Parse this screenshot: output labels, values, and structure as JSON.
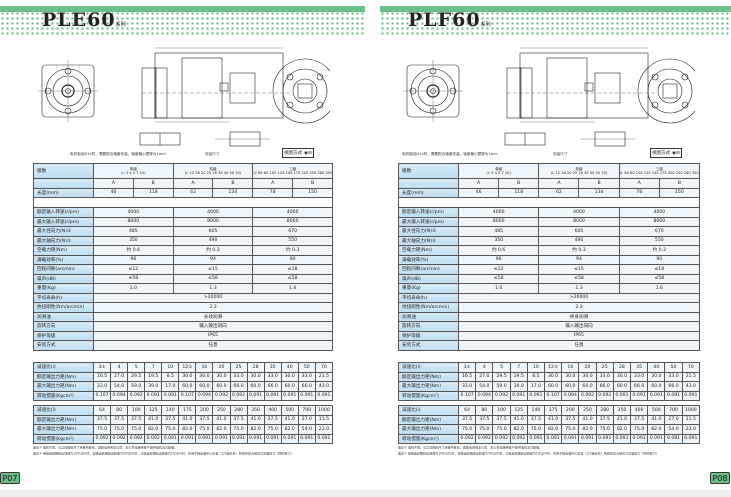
{
  "pages": [
    {
      "id": "pL",
      "title": "PLE60",
      "series": "系列",
      "view_label": "视图方式",
      "page_no": "P07",
      "lube": "长效润滑",
      "drawing_notes": [
        "电机轴径Ø14时，需要配合轴套安装，轴套最小壁厚为1mm",
        "安装尺寸"
      ]
    },
    {
      "id": "pR",
      "title": "PLF60",
      "series": "系列",
      "view_label": "视图方式",
      "page_no": "P08",
      "lube": "终身润滑",
      "drawing_notes": [
        "电机轴径Ø14时，需要配合轴套安装，轴套最小壁厚为1mm",
        "安装尺寸"
      ]
    }
  ],
  "spec": {
    "stage_label": "级数",
    "stages": [
      {
        "name": "单级",
        "ratios": "(i: 3 4 5 7 10)"
      },
      {
        "name": "双级",
        "ratios": "(i: 12 16 20 25 28 35 40 50 70)"
      },
      {
        "name": "三级",
        "ratios": "(i: 64 80 100 125 140 175 200 250 280 350 400 500 700 1000)"
      }
    ],
    "ab": [
      "A",
      "B",
      "A",
      "B",
      "A",
      "B"
    ],
    "length_label": "长度(mm)",
    "length": [
      "46",
      "118",
      "62",
      "134",
      "78",
      "150"
    ],
    "rows": [
      {
        "label": "额定输入转速(r/pm)",
        "values": [
          "4000",
          "4000",
          "4000"
        ]
      },
      {
        "label": "最大输入转速(r/pm)",
        "values": [
          "8000",
          "8000",
          "8000"
        ]
      },
      {
        "label": "最大径向力(N)②",
        "values": [
          "485",
          "605",
          "670"
        ]
      },
      {
        "label": "最大轴向力(N)②",
        "values": [
          "350",
          "490",
          "550"
        ]
      },
      {
        "label": "空载力矩(Nm)",
        "values": [
          "约 0.6",
          "约 0.3",
          "约 0.3"
        ]
      },
      {
        "label": "满载效率(%)",
        "values": [
          "96",
          "94",
          "90"
        ]
      },
      {
        "label": "回程间隙(arcmin)",
        "values": [
          "≤12",
          "≤15",
          "≤18"
        ]
      },
      {
        "label": "噪声(dB)",
        "values": [
          "≤58",
          "≤58",
          "≤58"
        ]
      },
      {
        "label": "重量(Kg)",
        "values": [
          "1.0",
          "1.3",
          "1.6"
        ]
      },
      {
        "label": "平均寿命(h)",
        "values": [
          ">20000"
        ]
      },
      {
        "label": "抗扭刚性(Nm/arcmin)",
        "values": [
          "2.3"
        ]
      },
      {
        "label": "润滑油",
        "values": [
          "@lube"
        ]
      },
      {
        "label": "旋转方向",
        "values": [
          "输入输出同向"
        ]
      },
      {
        "label": "保护等级",
        "values": [
          "IP65"
        ]
      },
      {
        "label": "安装方式",
        "values": [
          "任意"
        ]
      }
    ]
  },
  "ratio_tables": [
    {
      "rows": [
        {
          "label": "减速比(i)",
          "values": [
            "3①",
            "4",
            "5",
            "7",
            "10",
            "12①",
            "16",
            "20",
            "25",
            "28",
            "35",
            "40",
            "50",
            "70"
          ]
        },
        {
          "label": "额定输出力矩(Nm)",
          "values": [
            "16.5",
            "27.0",
            "29.5",
            "19.5",
            "8.5",
            "30.0",
            "30.0",
            "30.0",
            "33.0",
            "30.0",
            "33.0",
            "30.0",
            "33.0",
            "21.5"
          ]
        },
        {
          "label": "最大输出力矩(Nm)",
          "values": [
            "33.0",
            "54.0",
            "59.0",
            "39.0",
            "17.0",
            "60.0",
            "60.0",
            "60.0",
            "66.0",
            "60.0",
            "66.0",
            "60.0",
            "66.0",
            "43.0"
          ]
        },
        {
          "label": "转动惯量(Kgcm²)",
          "values": [
            "0.107",
            "0.094",
            "0.092",
            "0.091",
            "0.091",
            "0.107",
            "0.094",
            "0.092",
            "0.092",
            "0.091",
            "0.091",
            "0.091",
            "0.091",
            "0.091"
          ]
        }
      ]
    },
    {
      "rows": [
        {
          "label": "减速比(i)",
          "values": [
            "64",
            "80",
            "100",
            "125",
            "140",
            "175",
            "200",
            "250",
            "280",
            "350",
            "400",
            "500",
            "700",
            "1000"
          ]
        },
        {
          "label": "额定输出力矩(Nm)",
          "values": [
            "37.5",
            "37.5",
            "37.5",
            "41.0",
            "37.5",
            "41.0",
            "37.5",
            "41.0",
            "37.5",
            "41.0",
            "37.5",
            "41.0",
            "27.0",
            "11.5"
          ]
        },
        {
          "label": "最大输出力矩(Nm)",
          "values": [
            "75.0",
            "75.0",
            "75.0",
            "82.0",
            "75.0",
            "82.0",
            "75.0",
            "82.0",
            "75.0",
            "82.0",
            "75.0",
            "82.0",
            "54.0",
            "23.0"
          ]
        },
        {
          "label": "转动惯量(Kgcm²)",
          "values": [
            "0.092",
            "0.092",
            "0.092",
            "0.092",
            "0.091",
            "0.091",
            "0.091",
            "0.091",
            "0.091",
            "0.091",
            "0.091",
            "0.091",
            "0.091",
            "0.091"
          ]
        }
      ]
    }
  ],
  "notes": [
    "备注①  电机不同，与之匹配的尺寸将有所变化，适配请咨询本公司，本公司也接受客户提供电机法兰配做。",
    "备注②  单级齿轮箱输出转速为100r/pm时，双级齿轮箱输出转速为50r/pm时，三级齿轮箱输出转速为10r/pm时，作用于输出轴中心位置（1/2轴长处）所受的最大径向力及轴向力（同时受力）"
  ]
}
